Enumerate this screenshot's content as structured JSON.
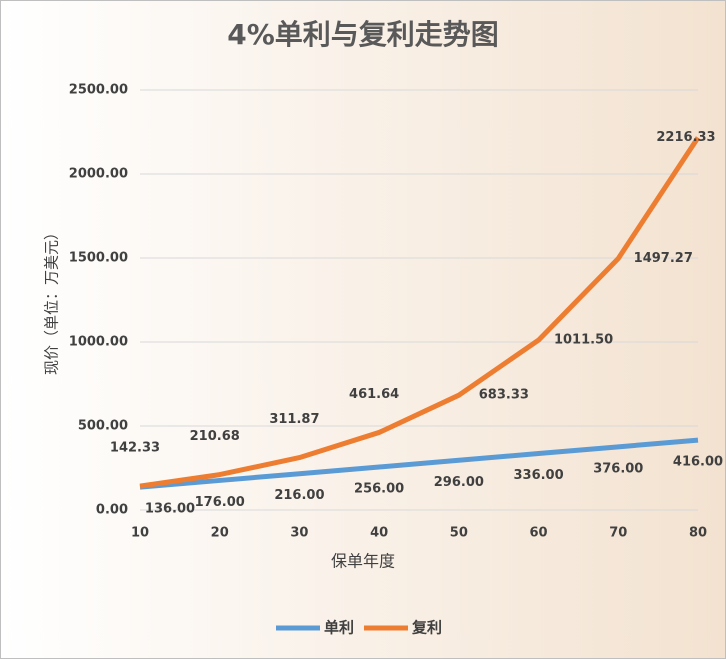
{
  "chart_data": {
    "type": "line",
    "title": "4%单利与复利走势图",
    "x_label": "保单年度",
    "y_label": "现价（单位：万美元）",
    "x": [
      10,
      20,
      30,
      40,
      50,
      60,
      70,
      80
    ],
    "xlim": [
      10,
      80
    ],
    "xticks": [
      10,
      20,
      30,
      40,
      50,
      60,
      70,
      80
    ],
    "ylim": [
      0,
      2500
    ],
    "yticks": [
      {
        "value": 0,
        "label": "0.00"
      },
      {
        "value": 500,
        "label": "500.00"
      },
      {
        "value": 1000,
        "label": "1000.00"
      },
      {
        "value": 1500,
        "label": "1500.00"
      },
      {
        "value": 2000,
        "label": "2000.00"
      },
      {
        "value": 2500,
        "label": "2500.00"
      }
    ],
    "grid": true,
    "legend": "bottom",
    "series": [
      {
        "name": "单利",
        "color": "#5b9bd5",
        "values": [
          136,
          176,
          216,
          256,
          296,
          336,
          376,
          416
        ],
        "value_labels": [
          "136.00",
          "176.00",
          "216.00",
          "256.00",
          "296.00",
          "336.00",
          "376.00",
          "416.00"
        ]
      },
      {
        "name": "复利",
        "color": "#ed7d31",
        "values": [
          142.33,
          210.68,
          311.87,
          461.64,
          683.33,
          1011.5,
          1497.27,
          2216.33
        ],
        "value_labels": [
          "142.33",
          "210.68",
          "311.87",
          "461.64",
          "683.33",
          "1011.50",
          "1497.27",
          "2216.33"
        ]
      }
    ]
  }
}
